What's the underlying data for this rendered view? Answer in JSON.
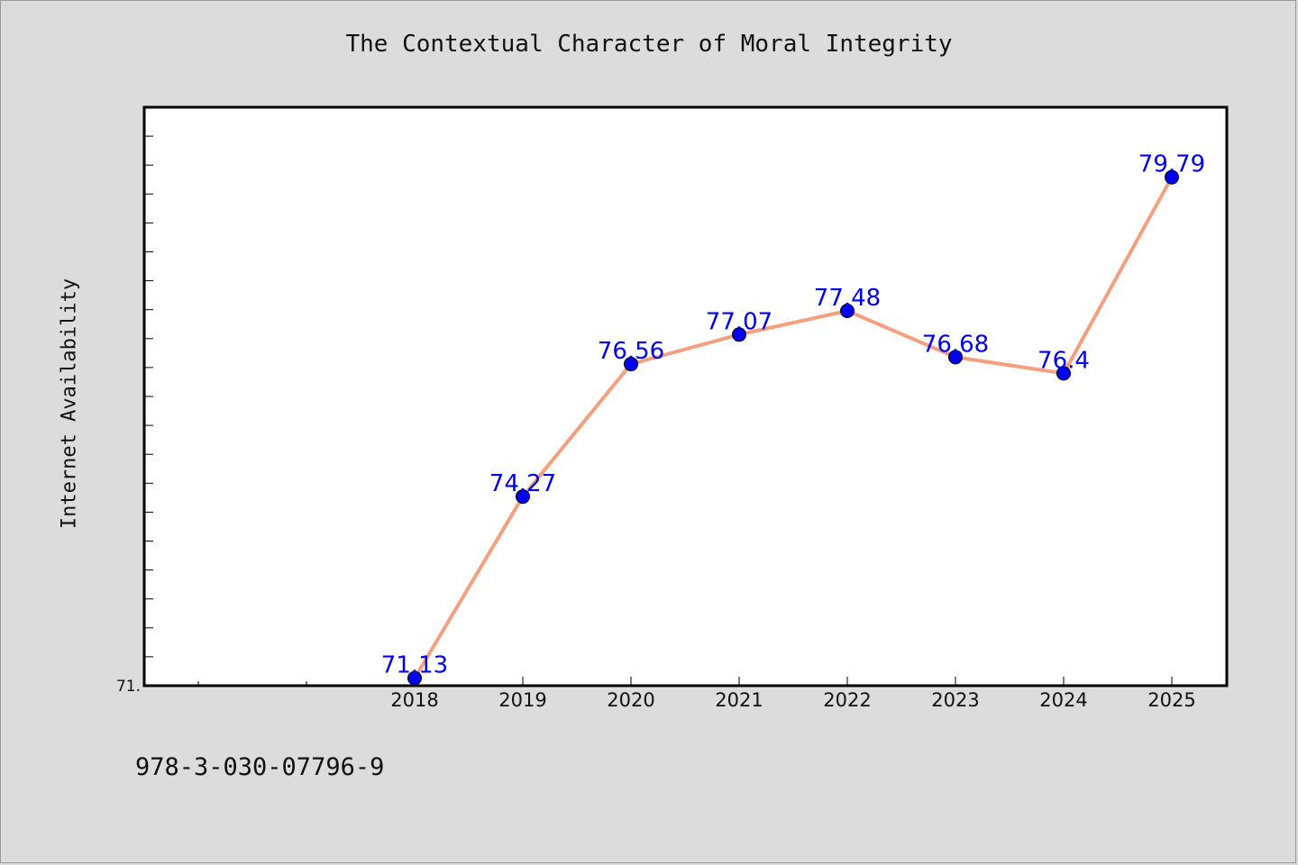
{
  "chart_data": {
    "type": "line",
    "title": "The Contextual Character of Moral Integrity",
    "xlabel": "",
    "ylabel": "Internet Availability",
    "categories": [
      "2018",
      "2019",
      "2020",
      "2021",
      "2022",
      "2023",
      "2024",
      "2025"
    ],
    "values": [
      71.13,
      74.27,
      76.56,
      77.07,
      77.48,
      76.68,
      76.4,
      79.79
    ],
    "data_labels": [
      "71.13",
      "74.27",
      "76.56",
      "77.07",
      "77.48",
      "76.68",
      "76.4",
      "79.79"
    ],
    "y_tick_labels": [
      "71."
    ],
    "ylim": [
      71.0,
      81.0
    ],
    "grid": false,
    "line_color": "#f4a07e",
    "marker_color": "#0000ee",
    "label_color": "#0000ee"
  },
  "footer": {
    "code": "978-3-030-07796-9"
  }
}
